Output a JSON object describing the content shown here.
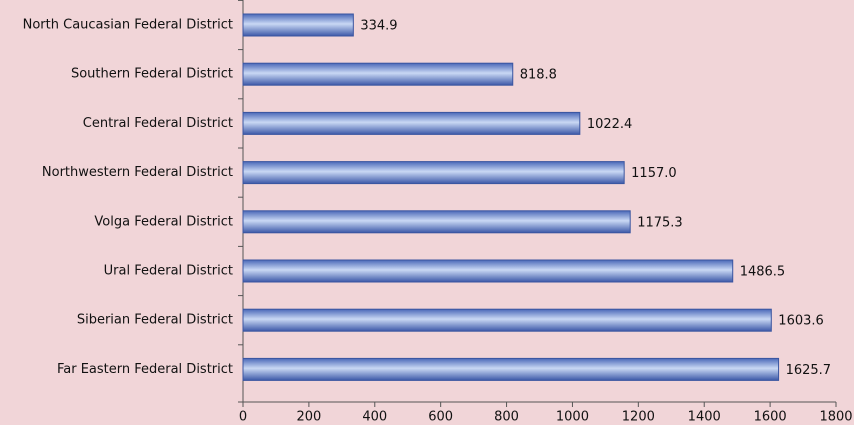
{
  "chart_data": {
    "type": "bar",
    "orientation": "horizontal",
    "categories": [
      "North Caucasian Federal District",
      "Southern Federal District",
      "Central Federal District",
      "Northwestern Federal District",
      "Volga Federal District",
      "Ural Federal District",
      "Siberian Federal District",
      "Far Eastern Federal District"
    ],
    "values": [
      334.9,
      818.8,
      1022.4,
      1157.0,
      1175.3,
      1486.5,
      1603.6,
      1625.7
    ],
    "value_labels": [
      "334.9",
      "818.8",
      "1022.4",
      "1157.0",
      "1175.3",
      "1486.5",
      "1603.6",
      "1625.7"
    ],
    "color": "#6f8fd6",
    "xlim": [
      0,
      1800
    ],
    "xticks": [
      0,
      200,
      400,
      600,
      800,
      1000,
      1200,
      1400,
      1600,
      1800
    ]
  }
}
